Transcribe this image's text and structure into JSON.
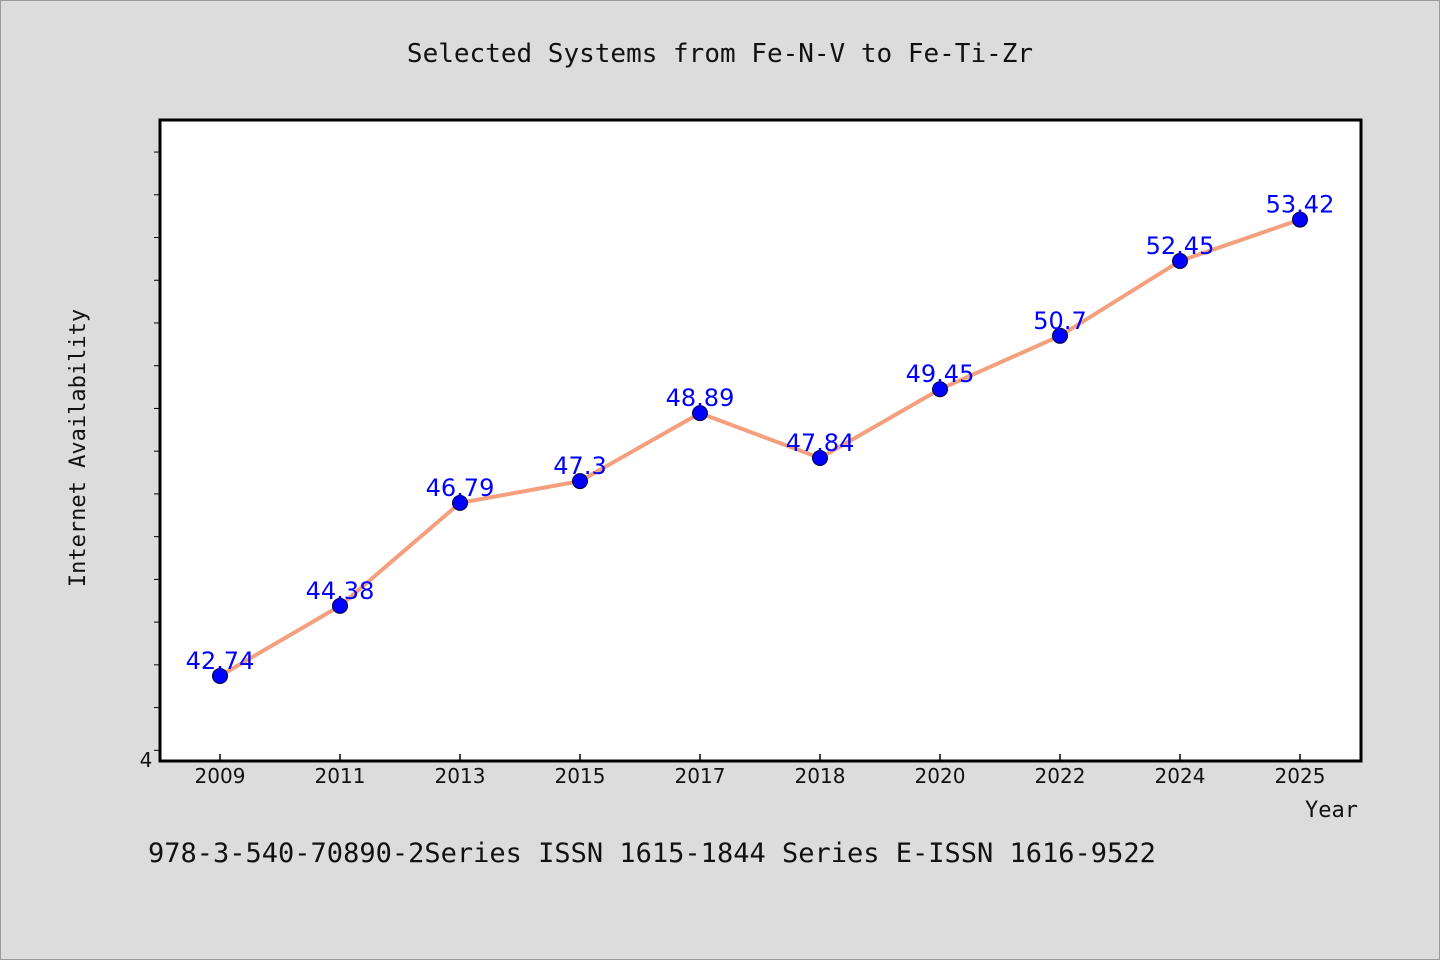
{
  "chart_data": {
    "type": "line",
    "title": "Selected Systems from Fe-N-V to Fe-Ti-Zr",
    "xlabel": "Year",
    "ylabel": "Internet Availability",
    "categories": [
      "2009",
      "2011",
      "2013",
      "2015",
      "2017",
      "2018",
      "2020",
      "2022",
      "2024",
      "2025"
    ],
    "series": [
      {
        "values": [
          42.74,
          44.38,
          46.79,
          47.3,
          48.89,
          47.84,
          49.45,
          50.7,
          52.45,
          53.42
        ],
        "data_labels": [
          "42.74",
          "44.38",
          "46.79",
          "47.3",
          "48.89",
          "47.84",
          "49.45",
          "50.7",
          "52.45",
          "53.42"
        ],
        "line_color": "#f4a07e",
        "marker_color": "#0000ff"
      }
    ],
    "y_tick_label": "4",
    "ylim": [
      40.75,
      55.75
    ],
    "minor_tick_step": 1,
    "grid": false,
    "label_color": "#0000ff"
  },
  "footer_text": "978-3-540-70890-2Series ISSN 1615-1844 Series E-ISSN 1616-9522"
}
